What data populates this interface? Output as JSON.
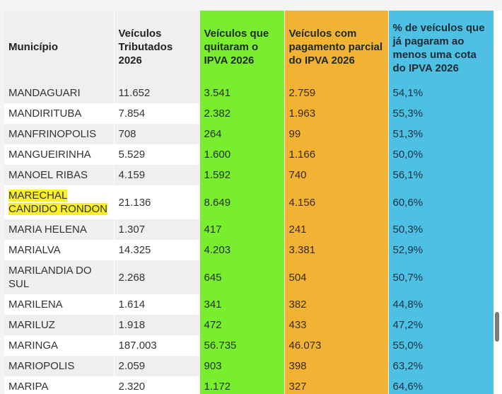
{
  "colors": {
    "green": "#79ee2f",
    "orange": "#f2b233",
    "blue": "#4ec0e4",
    "highlight": "#fbee2a"
  },
  "table": {
    "headers": [
      "Município",
      "Veículos Tributados 2026",
      "Veículos que quitaram o IPVA 2026",
      "Veículos com pagamento parcial do IPVA 2026",
      "% de veículos que já pagaram ao menos uma cota do IPVA 2026"
    ],
    "rows": [
      {
        "municipio": "MANDAGUARI",
        "tributados": "11.652",
        "quitaram": "3.541",
        "parcial": "2.759",
        "percentual": "54,1%"
      },
      {
        "municipio": "MANDIRITUBA",
        "tributados": "7.854",
        "quitaram": "2.382",
        "parcial": "1.963",
        "percentual": "55,3%"
      },
      {
        "municipio": "MANFRINOPOLIS",
        "tributados": "708",
        "quitaram": "264",
        "parcial": "99",
        "percentual": "51,3%"
      },
      {
        "municipio": "MANGUEIRINHA",
        "tributados": "5.529",
        "quitaram": "1.600",
        "parcial": "1.166",
        "percentual": "50,0%"
      },
      {
        "municipio": "MANOEL RIBAS",
        "tributados": "4.159",
        "quitaram": "1.592",
        "parcial": "740",
        "percentual": "56,1%"
      },
      {
        "municipio": "MARECHAL CANDIDO RONDON",
        "tributados": "21.136",
        "quitaram": "8.649",
        "parcial": "4.156",
        "percentual": "60,6%",
        "highlighted": true
      },
      {
        "municipio": "MARIA HELENA",
        "tributados": "1.307",
        "quitaram": "417",
        "parcial": "241",
        "percentual": "50,3%"
      },
      {
        "municipio": "MARIALVA",
        "tributados": "14.325",
        "quitaram": "4.203",
        "parcial": "3.381",
        "percentual": "52,9%"
      },
      {
        "municipio": "MARILANDIA DO SUL",
        "tributados": "2.268",
        "quitaram": "645",
        "parcial": "504",
        "percentual": "50,7%"
      },
      {
        "municipio": "MARILENA",
        "tributados": "1.614",
        "quitaram": "341",
        "parcial": "382",
        "percentual": "44,8%"
      },
      {
        "municipio": "MARILUZ",
        "tributados": "1.918",
        "quitaram": "472",
        "parcial": "433",
        "percentual": "47,2%"
      },
      {
        "municipio": "MARINGA",
        "tributados": "187.003",
        "quitaram": "56.735",
        "parcial": "46.073",
        "percentual": "55,0%"
      },
      {
        "municipio": "MARIOPOLIS",
        "tributados": "2.059",
        "quitaram": "903",
        "parcial": "398",
        "percentual": "63,2%"
      },
      {
        "municipio": "MARIPA",
        "tributados": "2.320",
        "quitaram": "1.172",
        "parcial": "327",
        "percentual": "64,6%"
      }
    ]
  }
}
